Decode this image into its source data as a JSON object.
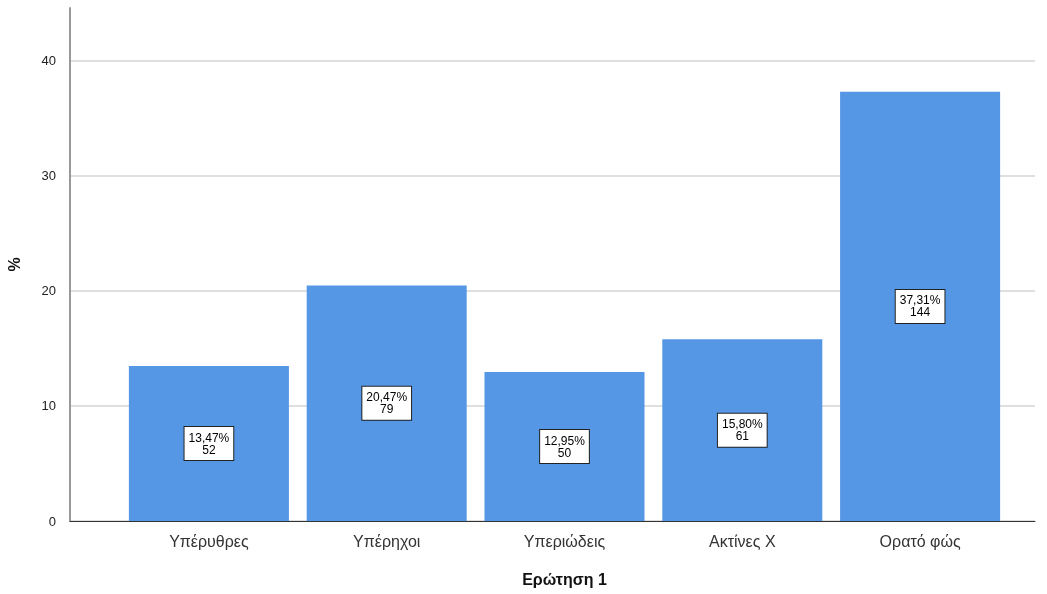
{
  "chart_data": {
    "type": "bar",
    "xlabel": "Ερώτηση 1",
    "ylabel": "%",
    "categories": [
      "Υπέρυθρες",
      "Υπέρηχοι",
      "Υπεριώδεις",
      "Ακτίνες Χ",
      "Ορατό φώς"
    ],
    "values": [
      13.47,
      20.47,
      12.95,
      15.8,
      37.31
    ],
    "color": "#5596e5",
    "value_labels": [
      "13,47%\n52",
      "20,47%\n79",
      "12,95%\n50",
      "15,80%\n61",
      "37,31%\n144"
    ],
    "ylim": [
      0,
      44.6
    ],
    "yticks": [
      0,
      10,
      20,
      30,
      40
    ],
    "grid": "y"
  }
}
